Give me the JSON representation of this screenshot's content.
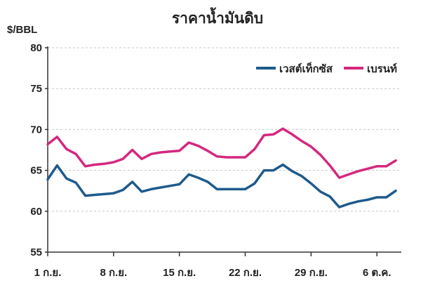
{
  "chart_data": {
    "type": "line",
    "title": "ราคาน้ำมันดิบ",
    "ylabel": "$/BBL",
    "ylim": [
      55,
      80
    ],
    "yticks": [
      55,
      60,
      65,
      70,
      75,
      80
    ],
    "grid": true,
    "legend_position": "top-right",
    "x_tick_labels": [
      "1 ก.ย.",
      "8 ก.ย.",
      "15 ก.ย.",
      "22 ก.ย.",
      "29 ก.ย.",
      "6 ต.ค."
    ],
    "x_tick_days": [
      1,
      8,
      15,
      22,
      29,
      36
    ],
    "series": [
      {
        "name": "เวสต์เท็กซัส",
        "color": "#1f5a8c",
        "x": [
          1,
          2,
          3,
          4,
          5,
          6,
          7,
          8,
          9,
          10,
          11,
          12,
          13,
          14,
          15,
          16,
          17,
          18,
          19,
          20,
          21,
          22,
          23,
          24,
          25,
          26,
          27,
          28,
          29,
          30,
          31,
          32,
          33,
          34,
          35,
          36,
          37,
          38
        ],
        "values": [
          63.9,
          65.6,
          64.0,
          63.5,
          61.9,
          62.0,
          62.1,
          62.2,
          62.6,
          63.6,
          62.4,
          62.7,
          62.9,
          63.1,
          63.3,
          64.5,
          64.1,
          63.6,
          62.7,
          62.7,
          62.7,
          62.7,
          63.4,
          65.0,
          65.0,
          65.7,
          64.9,
          64.3,
          63.4,
          62.4,
          61.8,
          60.5,
          60.9,
          61.2,
          61.4,
          61.7,
          61.7,
          62.5
        ]
      },
      {
        "name": "เบรนท์",
        "color": "#d4287f",
        "x": [
          1,
          2,
          3,
          4,
          5,
          6,
          7,
          8,
          9,
          10,
          11,
          12,
          13,
          14,
          15,
          16,
          17,
          18,
          19,
          20,
          21,
          22,
          23,
          24,
          25,
          26,
          27,
          28,
          29,
          30,
          31,
          32,
          33,
          34,
          35,
          36,
          37,
          38
        ],
        "values": [
          68.2,
          69.1,
          67.6,
          67.0,
          65.5,
          65.7,
          65.8,
          66.0,
          66.4,
          67.5,
          66.4,
          67.0,
          67.2,
          67.3,
          67.4,
          68.4,
          68.0,
          67.4,
          66.7,
          66.6,
          66.6,
          66.6,
          67.6,
          69.3,
          69.4,
          70.1,
          69.4,
          68.6,
          67.9,
          66.9,
          65.6,
          64.1,
          64.5,
          64.9,
          65.2,
          65.5,
          65.5,
          66.2
        ]
      }
    ]
  }
}
